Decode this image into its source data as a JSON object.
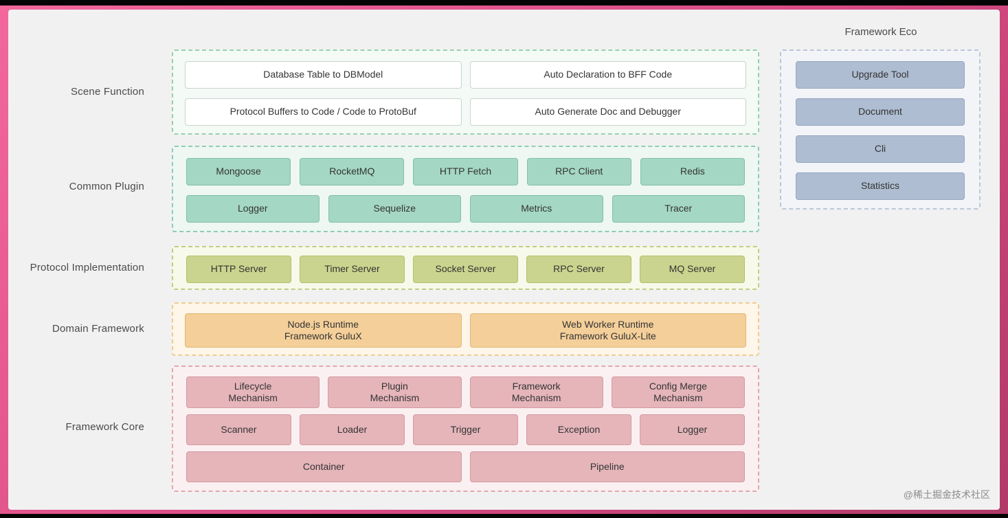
{
  "scene_function": {
    "label": "Scene Function",
    "boxes": [
      "Database Table to DBModel",
      "Auto Declaration to BFF Code",
      "Protocol Buffers to Code / Code to ProtoBuf",
      "Auto Generate Doc and Debugger"
    ]
  },
  "common_plugin": {
    "label": "Common Plugin",
    "row1": [
      "Mongoose",
      "RocketMQ",
      "HTTP Fetch",
      "RPC Client",
      "Redis"
    ],
    "row2": [
      "Logger",
      "Sequelize",
      "Metrics",
      "Tracer"
    ]
  },
  "protocol_implementation": {
    "label": "Protocol Implementation",
    "row1": [
      "HTTP Server",
      "Timer Server",
      "Socket Server",
      "RPC Server",
      "MQ Server"
    ]
  },
  "domain_framework": {
    "label": "Domain Framework",
    "boxes": [
      "Node.js Runtime\nFramework GuluX",
      "Web Worker Runtime\nFramework GuluX-Lite"
    ]
  },
  "framework_core": {
    "label": "Framework Core",
    "row1": [
      "Lifecycle\nMechanism",
      "Plugin\nMechanism",
      "Framework\nMechanism",
      "Config Merge\nMechanism"
    ],
    "row2": [
      "Scanner",
      "Loader",
      "Trigger",
      "Exception",
      "Logger"
    ],
    "row3": [
      "Container",
      "Pipeline"
    ]
  },
  "framework_eco": {
    "label": "Framework Eco",
    "items": [
      "Upgrade Tool",
      "Document",
      "Cli",
      "Statistics"
    ]
  },
  "watermark": "@稀土掘金技术社区",
  "colors": {
    "frame-pink-1": "#f2679c",
    "frame-pink-2": "#d84b84",
    "frame-pink-3": "#b03a68",
    "panel-bg": "#f1f1f1",
    "text": "#333333",
    "label-text": "#4a4a4a",
    "scene-border": "#97d0b0",
    "scene-bg": "#f4faf6",
    "scene-box-bg": "#ffffff",
    "scene-box-border": "#ccd3cd",
    "plugin-border": "#8fccb6",
    "plugin-bg": "#eef7f2",
    "plugin-box-bg": "#a4d7c4",
    "plugin-box-border": "#82c0a9",
    "protocol-border": "#c3cd85",
    "protocol-bg": "#f7f9ea",
    "protocol-box-bg": "#cbd48e",
    "protocol-box-border": "#b2bf6c",
    "domain-border": "#eecb93",
    "domain-bg": "#fdf6e9",
    "domain-box-bg": "#f4cf99",
    "domain-box-border": "#e2b778",
    "core-border": "#dfa8ae",
    "core-bg": "#fbf0f1",
    "core-box-bg": "#e5b5ba",
    "core-box-border": "#d39aa2",
    "eco-border": "#bcc6d8",
    "eco-bg": "#f2f4f8",
    "eco-box-bg": "#aebdd1",
    "eco-box-border": "#95a6bf"
  }
}
